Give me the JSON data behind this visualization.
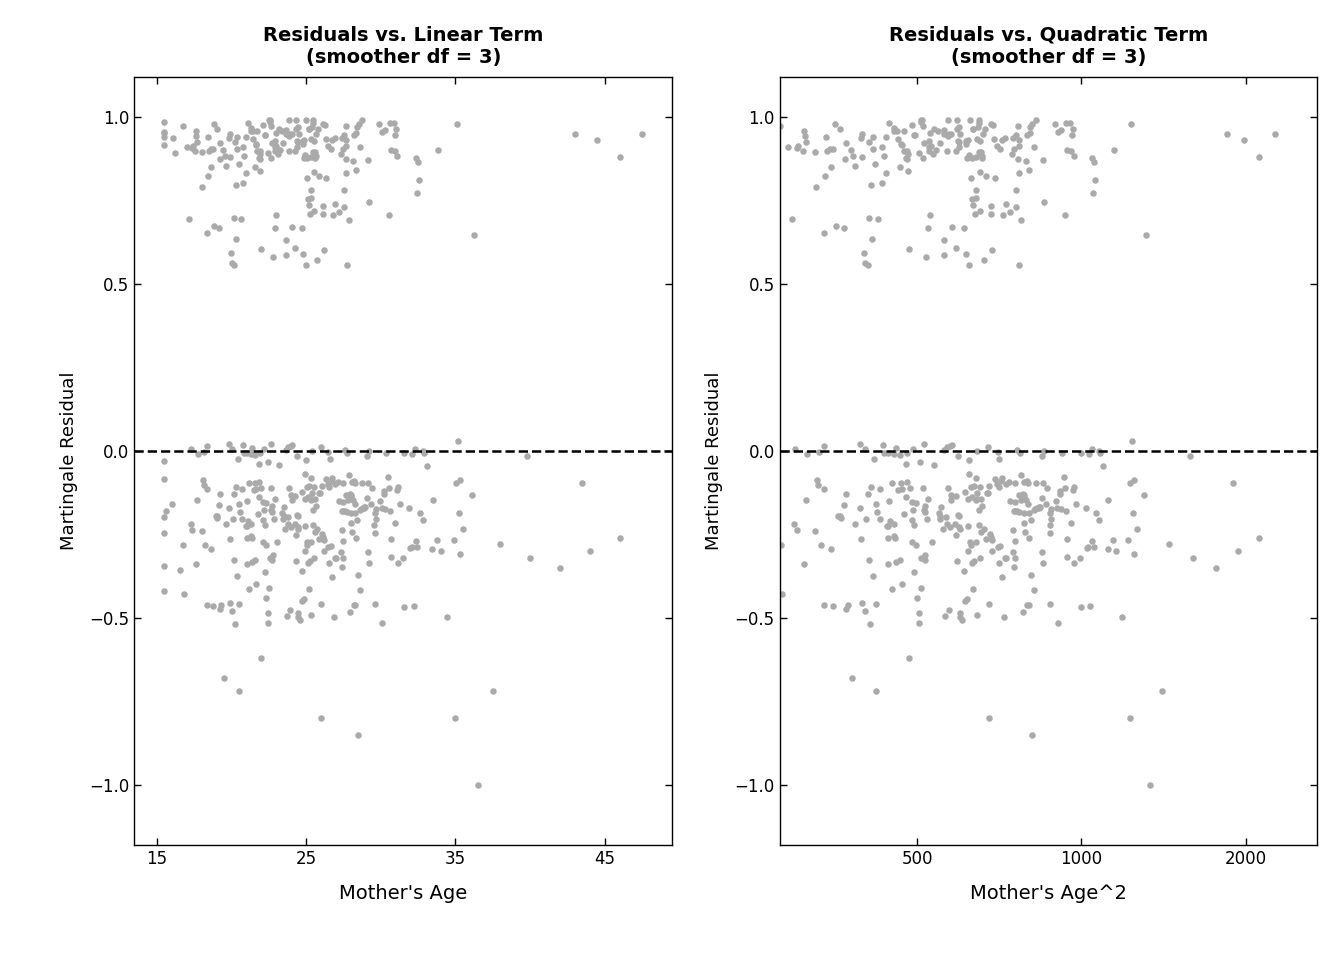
{
  "title_left": "Residuals vs. Linear Term\n(smoother df = 3)",
  "title_right": "Residuals vs. Quadratic Term\n(smoother df = 3)",
  "xlabel_left": "Mother's Age",
  "xlabel_right": "Mother's Age^2",
  "ylabel": "Martingale Residual",
  "ylim": [
    -1.18,
    1.12
  ],
  "xlim_left": [
    13.5,
    49.5
  ],
  "xlim_right": [
    280,
    2700
  ],
  "xticks_left": [
    15,
    25,
    35,
    45
  ],
  "xticks_right": [
    500,
    1000,
    2000
  ],
  "yticks": [
    -1.0,
    -0.5,
    0.0,
    0.5,
    1.0
  ],
  "dot_color": "#aaaaaa",
  "dot_size": 22,
  "line_color": "black",
  "line_width": 1.8,
  "seed": 42,
  "n_events": 200,
  "n_censored": 300,
  "background_color": "#ffffff"
}
